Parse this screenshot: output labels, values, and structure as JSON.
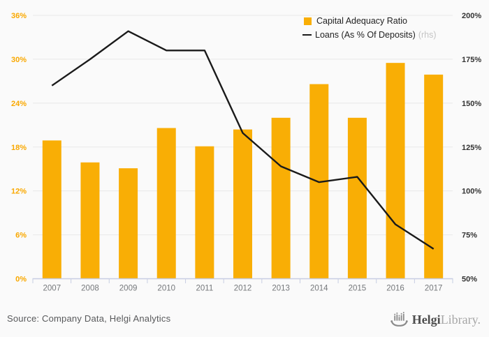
{
  "chart_data": {
    "type": "bar",
    "title": "",
    "categories": [
      "2007",
      "2008",
      "2009",
      "2010",
      "2011",
      "2012",
      "2013",
      "2014",
      "2015",
      "2016",
      "2017"
    ],
    "series": [
      {
        "name": "Capital Adequacy Ratio",
        "type": "bar",
        "axis": "left",
        "color": "#F9AE05",
        "values": [
          18.9,
          15.9,
          15.1,
          20.6,
          18.1,
          20.4,
          22.0,
          26.6,
          22.0,
          29.5,
          27.9
        ]
      },
      {
        "name": "Loans (As % Of Deposits)",
        "type": "line",
        "axis": "right",
        "color": "#1A1A1A",
        "values": [
          160,
          175,
          191,
          180,
          180,
          133,
          114,
          105,
          108,
          81,
          67
        ]
      }
    ],
    "left_axis": {
      "min": 0,
      "max": 36,
      "step": 6,
      "tick_labels": [
        "0%",
        "6%",
        "12%",
        "18%",
        "24%",
        "30%",
        "36%"
      ],
      "label_color": "#F9A800"
    },
    "right_axis": {
      "min": 50,
      "max": 200,
      "step": 25,
      "tick_labels": [
        "50%",
        "75%",
        "100%",
        "125%",
        "150%",
        "175%",
        "200%"
      ],
      "label_color": "#333333"
    },
    "legend": [
      {
        "label": "Capital Adequacy Ratio",
        "suffix": ""
      },
      {
        "label": "Loans (As % Of Deposits)",
        "suffix": "(rhs)"
      }
    ],
    "legend_position": "top-right",
    "grid": true
  },
  "footer": {
    "source": "Source: Company Data, Helgi Analytics",
    "logo": {
      "bold": "Helgi",
      "light": "Library."
    }
  },
  "colors": {
    "background": "#FAFAFA",
    "gridline": "#E8E8E8",
    "axis_line": "#C7CDE2",
    "x_label": "#75787B"
  }
}
